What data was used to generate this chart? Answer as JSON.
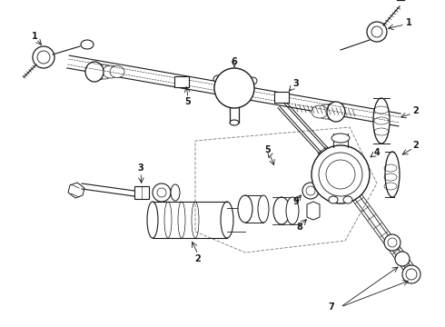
{
  "background_color": "#ffffff",
  "line_color": "#1a1a1a",
  "fig_width": 4.9,
  "fig_height": 3.6,
  "dpi": 100,
  "components": {
    "label_fontsize": 7,
    "label_fontweight": "bold",
    "lw_main": 0.9,
    "lw_thin": 0.5,
    "lw_thick": 1.5
  }
}
